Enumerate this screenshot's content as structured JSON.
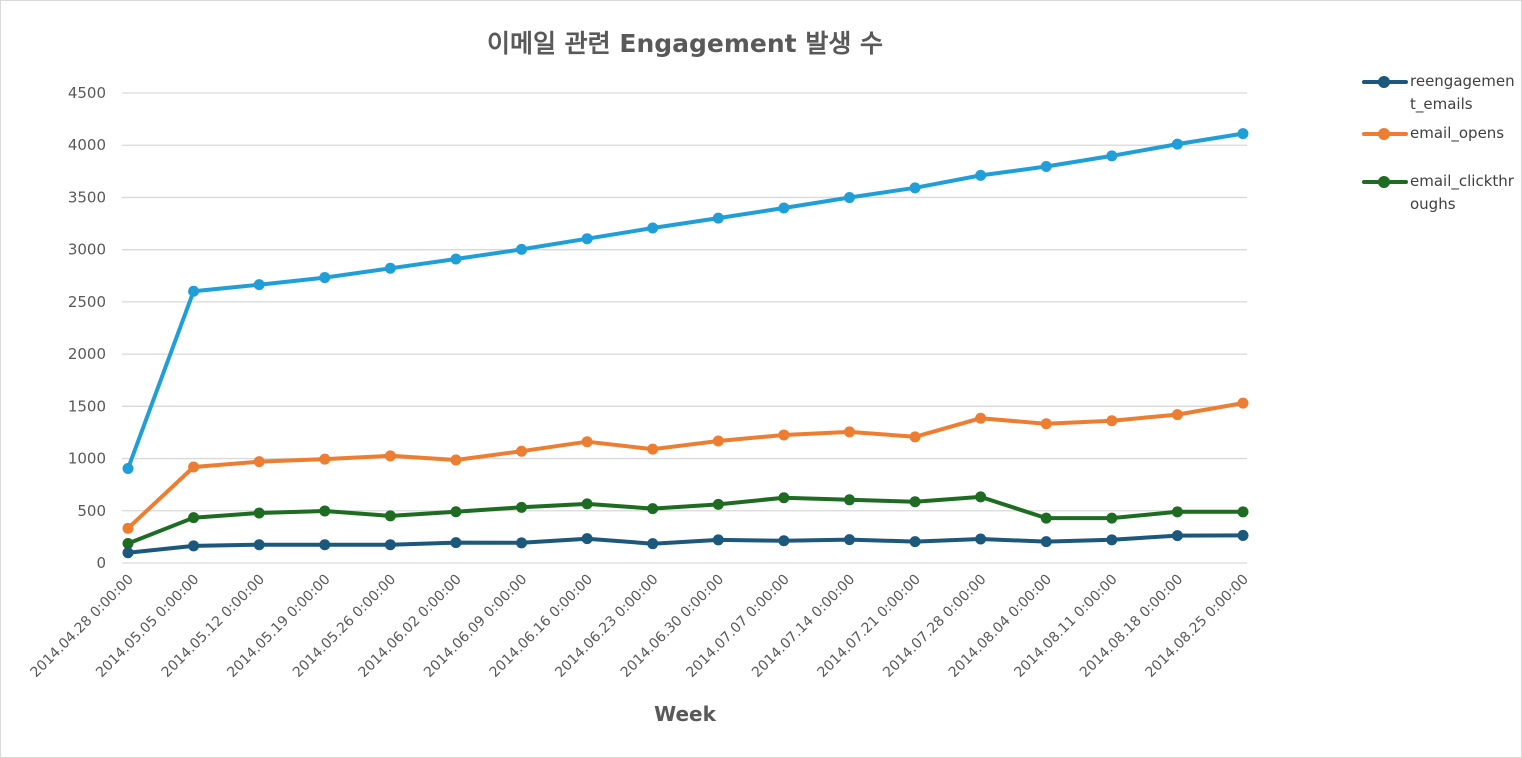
{
  "chart_data": {
    "type": "line",
    "title": "이메일 관련 Engagement 발생 수",
    "xlabel": "Week",
    "ylabel": "",
    "ylim": [
      0,
      4500
    ],
    "yticks": [
      0,
      500,
      1000,
      1500,
      2000,
      2500,
      3000,
      3500,
      4000,
      4500
    ],
    "grid": true,
    "legend_position": "right",
    "categories": [
      "2014.04.28 0:00:00",
      "2014.05.05 0:00:00",
      "2014.05.12 0:00:00",
      "2014.05.19 0:00:00",
      "2014.05.26 0:00:00",
      "2014.06.02 0:00:00",
      "2014.06.09 0:00:00",
      "2014.06.16 0:00:00",
      "2014.06.23 0:00:00",
      "2014.06.30 0:00:00",
      "2014.07.07 0:00:00",
      "2014.07.14 0:00:00",
      "2014.07.21 0:00:00",
      "2014.07.28 0:00:00",
      "2014.08.04 0:00:00",
      "2014.08.11 0:00:00",
      "2014.08.18 0:00:00",
      "2014.08.25 0:00:00"
    ],
    "series": [
      {
        "name": "",
        "color": "#1f9ed8",
        "values": [
          905,
          2602,
          2665,
          2733,
          2822,
          2911,
          3003,
          3105,
          3207,
          3302,
          3399,
          3499,
          3592,
          3711,
          3796,
          3898,
          4011,
          4111
        ]
      },
      {
        "name": "email_opens",
        "color": "#ed7d31",
        "values": [
          332,
          919,
          971,
          995,
          1026,
          986,
          1070,
          1161,
          1090,
          1168,
          1226,
          1255,
          1208,
          1386,
          1333,
          1362,
          1421,
          1531
        ]
      },
      {
        "name": "email_clickthroughs",
        "color": "#1e6b22",
        "values": [
          187,
          434,
          479,
          498,
          451,
          491,
          533,
          566,
          521,
          561,
          625,
          605,
          586,
          633,
          430,
          430,
          490,
          490
        ]
      },
      {
        "name": "reengagement_emails",
        "color": "#1b587c",
        "values": [
          98,
          164,
          175,
          175,
          175,
          195,
          193,
          233,
          185,
          221,
          213,
          224,
          205,
          230,
          205,
          222,
          262,
          264
        ]
      }
    ]
  },
  "legend": [
    {
      "label": "reengagement_emails",
      "color": "#1b587c"
    },
    {
      "label": "email_opens",
      "color": "#ed7d31"
    },
    {
      "label": "email_clickthroughs",
      "color": "#1e6b22"
    }
  ]
}
